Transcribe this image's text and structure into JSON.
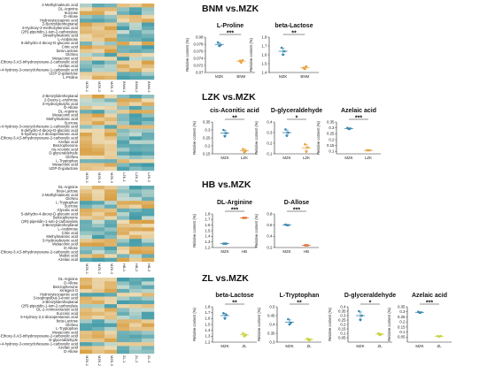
{
  "colors": {
    "mzk": "#3a87b0",
    "treat": "#e8a441",
    "hb_treat": "#e2703a",
    "zl_treat": "#c8d23e",
    "heat_low": "#3f9aa8",
    "heat_mid": "#f4f0dd",
    "heat_high": "#d9a044"
  },
  "heatmaps": [
    {
      "id": "bnm",
      "columns": [
        "MZK-1",
        "MZK-2",
        "MZK-3",
        "BNM-1",
        "BNM-2",
        "BNM-3"
      ],
      "rows": [
        "2-Methylmaleuric acid",
        "DL-Arginine",
        "Sucrose",
        "D-Allose",
        "Hydroxyisocaproic acid",
        "2-Benzylidenheptanal",
        "4-Hydroxy-3-methoxybenzoic acid",
        "(2R)-piperidin-1-ium-2-carboxylate",
        "Dimethylmalonic acid",
        "L-Arabinose",
        "5-dehydro-4-deoxy-D-glucaric acid",
        "Citric acid",
        "beta-Lactose",
        "GlcNeu",
        "Mesaconic acid",
        "6-Ethoxy-3,4,5-trihydroxyoxane-2-carboxylic acid",
        "Azelaic acid",
        "(1S,4S)-4-hydroxy-3-oxocyclohexane-1-carboxylic acid",
        "UDP-D-galactose",
        "L-Proline"
      ]
    },
    {
      "id": "lzk",
      "columns": [
        "MZK-1",
        "MZK-2",
        "MZK-3",
        "LZK-1",
        "LZK-2",
        "LZK-3"
      ],
      "rows": [
        "2-Benzylidenheptanal",
        "2-Deoxy-L-erythrose",
        "3-Hydroxybutyric acid",
        "D-Allose",
        "DL-Arginine",
        "Mesaconic acid",
        "Methylmalonic acid",
        "Sucrose",
        "(1S,4S)-4-hydroxy-3-oxocyclohexane-1-carboxylic acid",
        "5-dehydro-4-deoxy-D-glucaric acid",
        "6-hydroxy-2,4-dioxopentanoic acid",
        "6-Ethoxy-3,4,5-trihydroxyoxane-2-carboxylic acid",
        "Azelaic acid",
        "Benzophenone",
        "cis-Aconitic acid",
        "D-glyceraldehyde",
        "GlcNeu",
        "L-Tryptophan",
        "Mesaconic acid",
        "UDP-D-galactose"
      ]
    },
    {
      "id": "hb",
      "columns": [
        "MZK-1",
        "MZK-2",
        "MZK-3",
        "HB-1",
        "HB-2",
        "HB-3"
      ],
      "rows": [
        "DL-Arginine",
        "beta-Lactose",
        "2-Methylmaleuric acid",
        "GlcNeu",
        "L-Tryptophan",
        "Sucrose",
        "Glycolic acid",
        "5-dehydro-4-deoxy-D-glucaric acid",
        "Benzophenone",
        "(2R)-piperidin-1-ium-2-carboxylate",
        "2-Benzylidenheptanal",
        "L-Arabinose",
        "Citric acid",
        "Methylmalonic acid",
        "3-Hydroxybutyric acid",
        "Mesaconic acid",
        "D-Allose",
        "6-Ethoxy-3,4,5-trihydroxyoxane-2-carboxylic acid",
        "Maleic acid",
        "Azelaic acid"
      ]
    },
    {
      "id": "zl",
      "columns": [
        "MZK-1",
        "MZK-2",
        "MZK-3",
        "ZL-1",
        "ZL-2",
        "ZL-3"
      ],
      "rows": [
        "DL-Arginine",
        "D-Allose",
        "Benzophenone",
        "Kinkgnol O",
        "Hydroxyisocaproic acid",
        "3-Isopropylbut-3-enoic acid",
        "2-Benzylidenheptanal",
        "(2R)-piperidin-1-ium-2-carboxylate",
        "DL-2-Aminooctanoic acid",
        "Succinic acid",
        "5-Hydroxy-2,4-dioxopentanoic acid",
        "beta-Lactose",
        "GlcNeu",
        "L-Tryptophan",
        "Mesaconic acid",
        "6-Ethoxy-3,4,5-trihydroxyoxane-2-carboxylic acid",
        "D-glyceraldehyde",
        "(1S,4S)-4-hydroxy-3-oxocyclohexane-1-carboxylic acid",
        "Azelaic acid",
        "D-Allose"
      ]
    }
  ],
  "sections": [
    {
      "id": "bnm",
      "title": "BNM vs.MZK"
    },
    {
      "id": "lzk",
      "title": "LZK vs.MZK"
    },
    {
      "id": "hb",
      "title": "HB vs.MZK"
    },
    {
      "id": "zl",
      "title": "ZL vs.MZK"
    }
  ],
  "ylabel": "Relative content (%)",
  "chart_data": [
    {
      "type": "scatter",
      "section": "BNM vs.MZK",
      "title": "L-Proline",
      "categories": [
        "MZK",
        "BNM"
      ],
      "ylim": [
        0.07,
        0.08
      ],
      "ticks": [
        0.07,
        0.072,
        0.074,
        0.076,
        0.078,
        0.08
      ],
      "points": [
        [
          0.0785,
          0.0775,
          0.0778
        ],
        [
          0.0733,
          0.0728,
          0.0735
        ]
      ],
      "significance": "***"
    },
    {
      "type": "scatter",
      "section": "BNM vs.MZK",
      "title": "beta-Lactose",
      "categories": [
        "MZK",
        "BNM"
      ],
      "ylim": [
        1.4,
        1.8
      ],
      "ticks": [
        1.4,
        1.5,
        1.6,
        1.7,
        1.8
      ],
      "points": [
        [
          1.68,
          1.6,
          1.64
        ],
        [
          1.45,
          1.44,
          1.47
        ]
      ],
      "significance": "**"
    },
    {
      "type": "scatter",
      "section": "LZK vs.MZK",
      "title": "cis-Aconitic acid",
      "categories": [
        "MZK",
        "LZK"
      ],
      "ylim": [
        0.15,
        0.35
      ],
      "ticks": [
        0.15,
        0.2,
        0.25,
        0.3,
        0.35
      ],
      "points": [
        [
          0.3,
          0.26,
          0.28
        ],
        [
          0.18,
          0.16,
          0.17
        ]
      ],
      "significance": "**"
    },
    {
      "type": "scatter",
      "section": "LZK vs.MZK",
      "title": "D-glyceraldehyde",
      "categories": [
        "MZK",
        "LZK"
      ],
      "ylim": [
        0.1,
        0.4
      ],
      "ticks": [
        0.1,
        0.2,
        0.3,
        0.4
      ],
      "points": [
        [
          0.33,
          0.27,
          0.3
        ],
        [
          0.19,
          0.12,
          0.16
        ]
      ],
      "significance": "*"
    },
    {
      "type": "scatter",
      "section": "LZK vs.MZK",
      "title": "Azelaic acid",
      "categories": [
        "MZK",
        "LZK"
      ],
      "ylim": [
        0.08,
        0.35
      ],
      "ticks": [
        0.1,
        0.15,
        0.2,
        0.25,
        0.3,
        0.35
      ],
      "points": [
        [
          0.3,
          0.29,
          0.295
        ],
        [
          0.11,
          0.11,
          0.11
        ]
      ],
      "significance": "***"
    },
    {
      "type": "scatter",
      "section": "HB vs.MZK",
      "title": "DL-Arginine",
      "categories": [
        "MZK",
        "HB"
      ],
      "ylim": [
        1.2,
        1.8
      ],
      "ticks": [
        1.2,
        1.3,
        1.4,
        1.5,
        1.6,
        1.7,
        1.8
      ],
      "points": [
        [
          1.27,
          1.27,
          1.27
        ],
        [
          1.73,
          1.73,
          1.73
        ]
      ],
      "significance": "***"
    },
    {
      "type": "scatter",
      "section": "HB vs.MZK",
      "title": "D-Allose",
      "categories": [
        "MZK",
        "HB"
      ],
      "ylim": [
        0.2,
        0.8
      ],
      "ticks": [
        0.2,
        0.4,
        0.6,
        0.8
      ],
      "points": [
        [
          0.61,
          0.6,
          0.6
        ],
        [
          0.24,
          0.24,
          0.24
        ]
      ],
      "significance": "***"
    },
    {
      "type": "scatter",
      "section": "ZL vs.MZK",
      "title": "beta-Lactose",
      "categories": [
        "MZK",
        "ZL"
      ],
      "ylim": [
        1.2,
        1.8
      ],
      "ticks": [
        1.2,
        1.3,
        1.4,
        1.5,
        1.6,
        1.7,
        1.8
      ],
      "points": [
        [
          1.69,
          1.6,
          1.66
        ],
        [
          1.35,
          1.3,
          1.32
        ]
      ],
      "significance": "**"
    },
    {
      "type": "scatter",
      "section": "ZL vs.MZK",
      "title": "L-Tryptophan",
      "categories": [
        "MZK",
        "ZL"
      ],
      "ylim": [
        0.3,
        0.5
      ],
      "ticks": [
        0.3,
        0.35,
        0.4,
        0.45,
        0.5
      ],
      "points": [
        [
          0.43,
          0.4,
          0.41
        ],
        [
          0.32,
          0.31,
          0.315
        ]
      ],
      "significance": "**"
    },
    {
      "type": "scatter",
      "section": "ZL vs.MZK",
      "title": "D-glyceraldehyde",
      "categories": [
        "MZK",
        "ZL"
      ],
      "ylim": [
        0.0,
        0.4
      ],
      "ticks": [
        0.05,
        0.1,
        0.15,
        0.2,
        0.25,
        0.3,
        0.35,
        0.4
      ],
      "points": [
        [
          0.35,
          0.25,
          0.3
        ],
        [
          0.1,
          0.08,
          0.09
        ]
      ],
      "significance": "*"
    },
    {
      "type": "scatter",
      "section": "ZL vs.MZK",
      "title": "Azelaic acid",
      "categories": [
        "MZK",
        "ZL"
      ],
      "ylim": [
        0.0,
        0.35
      ],
      "ticks": [
        0.05,
        0.1,
        0.15,
        0.2,
        0.25,
        0.3,
        0.35
      ],
      "points": [
        [
          0.3,
          0.29,
          0.295
        ],
        [
          0.06,
          0.055,
          0.06
        ]
      ],
      "significance": "***"
    }
  ]
}
